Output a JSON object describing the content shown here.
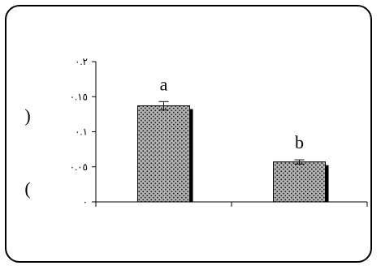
{
  "chart_data": {
    "type": "bar",
    "categories": [
      "",
      ""
    ],
    "values": [
      0.137,
      0.057
    ],
    "errors": [
      0.006,
      0.003
    ],
    "data_labels": [
      "a",
      "b"
    ],
    "ylim": [
      0,
      0.2
    ],
    "yticks": [
      0,
      0.05,
      0.1,
      0.15,
      0.2
    ],
    "ytick_labels": [
      "٠",
      "٠.٠٥",
      "٠.١",
      "٠.١٥",
      "٠.٢"
    ],
    "ylabel_top": ")",
    "ylabel_bottom": "(",
    "title": "",
    "xlabel": "",
    "bar_fill": "#b4b4b4",
    "bar_dots": "#1a1a1a",
    "bar_shadow": "#000000",
    "grid": false
  }
}
